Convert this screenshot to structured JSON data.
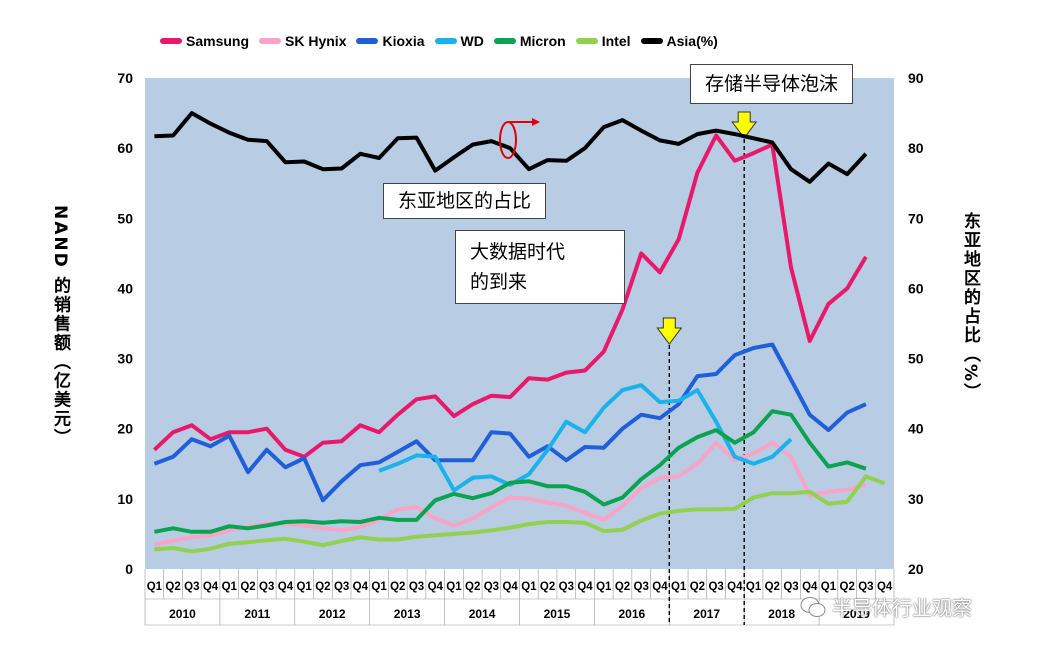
{
  "chart_data": {
    "type": "line",
    "title": "",
    "ylabel_left": "NAND 的销售额（亿美元）",
    "ylabel_right": "东亚地区的占比（%）",
    "ylim_left": [
      0,
      70
    ],
    "ylim_right": [
      20,
      90
    ],
    "yticks_left": [
      0,
      10,
      20,
      30,
      40,
      50,
      60,
      70
    ],
    "yticks_right": [
      20,
      30,
      40,
      50,
      60,
      70,
      80,
      90
    ],
    "quarters": [
      "Q1",
      "Q2",
      "Q3",
      "Q4",
      "Q1",
      "Q2",
      "Q3",
      "Q4",
      "Q1",
      "Q2",
      "Q3",
      "Q4",
      "Q1",
      "Q2",
      "Q3",
      "Q4",
      "Q1",
      "Q2",
      "Q3",
      "Q4",
      "Q1",
      "Q2",
      "Q3",
      "Q4",
      "Q1",
      "Q2",
      "Q3",
      "Q4",
      "Q1",
      "Q2",
      "Q3",
      "Q4",
      "Q1",
      "Q2",
      "Q3",
      "Q4",
      "Q1",
      "Q2",
      "Q3",
      "Q4"
    ],
    "years": [
      "2010",
      "2011",
      "2012",
      "2013",
      "2014",
      "2015",
      "2016",
      "2017",
      "2018",
      "2019"
    ],
    "grid": false,
    "legend_position": "top",
    "series": [
      {
        "name": "Samsung",
        "color": "#e8196a",
        "axis": "left",
        "start": 0,
        "values": [
          17,
          19.5,
          20.5,
          18.5,
          19.5,
          19.5,
          20,
          17,
          16,
          18,
          18.2,
          20.5,
          19.5,
          22,
          24.2,
          24.6,
          21.8,
          23.5,
          24.7,
          24.5,
          27.2,
          27,
          28,
          28.3,
          31,
          37,
          45,
          42.3,
          47,
          56.5,
          61.8,
          58.2,
          59.3,
          60.5,
          43,
          32.5,
          37.8,
          40,
          44.5
        ]
      },
      {
        "name": "SK Hynix",
        "color": "#f9a3c7",
        "axis": "left",
        "start": 0,
        "values": [
          3.5,
          4,
          4.5,
          4.8,
          5.5,
          6,
          6.5,
          6.5,
          6.2,
          5.8,
          5.5,
          6,
          7,
          8.5,
          8.8,
          7.2,
          6.2,
          7.2,
          8.8,
          10.2,
          10,
          9.5,
          9,
          8,
          7,
          9,
          11.5,
          13,
          13.2,
          15,
          18,
          15.5,
          16.5,
          18,
          16,
          10.5,
          11,
          11.3,
          12
        ]
      },
      {
        "name": "Kioxia",
        "color": "#1f5fd8",
        "axis": "left",
        "start": 0,
        "values": [
          15,
          16,
          18.5,
          17.5,
          19,
          13.8,
          17,
          14.5,
          15.8,
          9.8,
          12.5,
          14.8,
          15.2,
          16.7,
          18.2,
          15.5,
          15.5,
          15.5,
          19.5,
          19.3,
          16,
          17.5,
          15.5,
          17.4,
          17.3,
          20,
          22,
          21.5,
          23.5,
          27.5,
          27.8,
          30.5,
          31.5,
          32,
          27,
          22,
          19.8,
          22.3,
          23.5
        ]
      },
      {
        "name": "WD",
        "color": "#1ab2ea",
        "axis": "left",
        "start": 12,
        "values": [
          14,
          15,
          16.2,
          16,
          11.2,
          13,
          13.2,
          12,
          13.5,
          17,
          21,
          19.5,
          23,
          25.5,
          26.2,
          23.8,
          24,
          25.5,
          21,
          16,
          15,
          16,
          18.5
        ]
      },
      {
        "name": "Micron",
        "color": "#0aa350",
        "axis": "left",
        "start": 0,
        "values": [
          5.3,
          5.8,
          5.3,
          5.3,
          6.1,
          5.8,
          6.2,
          6.7,
          6.8,
          6.6,
          6.8,
          6.7,
          7.3,
          7,
          7,
          9.8,
          10.7,
          10.1,
          10.8,
          12.3,
          12.5,
          11.8,
          11.8,
          11,
          9.2,
          10.2,
          12.8,
          14.8,
          17.3,
          18.8,
          19.8,
          18,
          19.5,
          22.5,
          22,
          18,
          14.6,
          15.2,
          14.3
        ]
      },
      {
        "name": "Intel",
        "color": "#92d050",
        "axis": "left",
        "start": 0,
        "values": [
          2.8,
          3,
          2.5,
          2.9,
          3.6,
          3.8,
          4.1,
          4.3,
          3.9,
          3.4,
          4,
          4.5,
          4.2,
          4.2,
          4.6,
          4.8,
          5,
          5.2,
          5.5,
          5.9,
          6.4,
          6.7,
          6.7,
          6.6,
          5.4,
          5.6,
          6.9,
          7.9,
          8.3,
          8.5,
          8.5,
          8.6,
          10.2,
          10.8,
          10.8,
          11,
          9.3,
          9.6,
          13.2,
          12.2
        ]
      },
      {
        "name": "Asia(%)",
        "color": "#000000",
        "axis": "right",
        "start": 0,
        "values": [
          81.7,
          81.8,
          85,
          83.5,
          82.2,
          81.2,
          81,
          78,
          78.1,
          77,
          77.1,
          79.2,
          78.6,
          81.4,
          81.5,
          76.8,
          78.7,
          80.5,
          81,
          80,
          77,
          78.3,
          78.2,
          80,
          83,
          84,
          82.5,
          81.1,
          80.6,
          82,
          82.5,
          82,
          81.4,
          80.8,
          77,
          75.2,
          77.8,
          76.3,
          79.2
        ]
      }
    ],
    "annotations": [
      {
        "text": "东亚地区的占比"
      },
      {
        "text": "大数据时代\n的到来"
      },
      {
        "text": "存储半导体泡沫"
      }
    ]
  },
  "watermark": "半导体行业观察"
}
